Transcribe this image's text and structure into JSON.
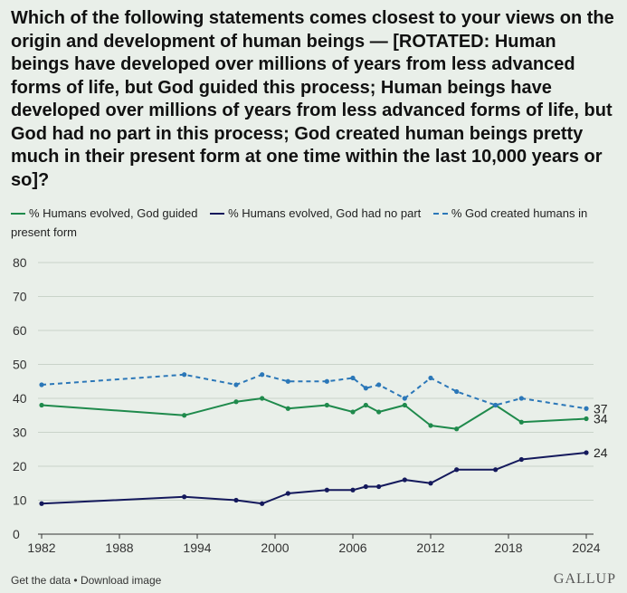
{
  "title": "Which of the following statements comes closest to your views on the origin and development of human beings — [ROTATED: Human beings have developed over millions of years from less advanced forms of life, but God guided this process; Human beings have developed over millions of years from less advanced forms of life, but God had no part in this process; God created human beings pretty much in their present form at one time within the last 10,000 years or so]?",
  "legend": [
    {
      "label": "% Humans evolved, God guided",
      "color": "#1f8a4c",
      "dash": "solid"
    },
    {
      "label": "% Humans evolved, God had no part",
      "color": "#14195c",
      "dash": "solid"
    },
    {
      "label": "% God created humans in present form",
      "color": "#2b77b8",
      "dash": "dashed"
    }
  ],
  "footer": {
    "get_data": "Get the data",
    "separator": "•",
    "download": "Download image",
    "logo": "GALLUP"
  },
  "chart_data": {
    "type": "line",
    "title": "",
    "xlabel": "",
    "ylabel": "",
    "xlim": [
      1982,
      2024
    ],
    "ylim": [
      0,
      80
    ],
    "xticks": [
      1982,
      1988,
      1994,
      2000,
      2006,
      2012,
      2018,
      2024
    ],
    "yticks": [
      0,
      10,
      20,
      30,
      40,
      50,
      60,
      70,
      80
    ],
    "grid": true,
    "legend_position": "top",
    "series": [
      {
        "name": "% Humans evolved, God guided",
        "color": "#1f8a4c",
        "dashed": false,
        "end_label": "34",
        "points": [
          [
            1982,
            38
          ],
          [
            1993,
            35
          ],
          [
            1997,
            39
          ],
          [
            1999,
            40
          ],
          [
            2001,
            37
          ],
          [
            2004,
            38
          ],
          [
            2006,
            36
          ],
          [
            2007,
            38
          ],
          [
            2008,
            36
          ],
          [
            2010,
            38
          ],
          [
            2012,
            32
          ],
          [
            2014,
            31
          ],
          [
            2017,
            38
          ],
          [
            2019,
            33
          ],
          [
            2024,
            34
          ]
        ]
      },
      {
        "name": "% Humans evolved, God had no part",
        "color": "#14195c",
        "dashed": false,
        "end_label": "24",
        "points": [
          [
            1982,
            9
          ],
          [
            1993,
            11
          ],
          [
            1997,
            10
          ],
          [
            1999,
            9
          ],
          [
            2001,
            12
          ],
          [
            2004,
            13
          ],
          [
            2006,
            13
          ],
          [
            2007,
            14
          ],
          [
            2008,
            14
          ],
          [
            2010,
            16
          ],
          [
            2012,
            15
          ],
          [
            2014,
            19
          ],
          [
            2017,
            19
          ],
          [
            2019,
            22
          ],
          [
            2024,
            24
          ]
        ]
      },
      {
        "name": "% God created humans in present form",
        "color": "#2b77b8",
        "dashed": true,
        "end_label": "37",
        "points": [
          [
            1982,
            44
          ],
          [
            1993,
            47
          ],
          [
            1997,
            44
          ],
          [
            1999,
            47
          ],
          [
            2001,
            45
          ],
          [
            2004,
            45
          ],
          [
            2006,
            46
          ],
          [
            2007,
            43
          ],
          [
            2008,
            44
          ],
          [
            2010,
            40
          ],
          [
            2012,
            46
          ],
          [
            2014,
            42
          ],
          [
            2017,
            38
          ],
          [
            2019,
            40
          ],
          [
            2024,
            37
          ]
        ]
      }
    ]
  }
}
